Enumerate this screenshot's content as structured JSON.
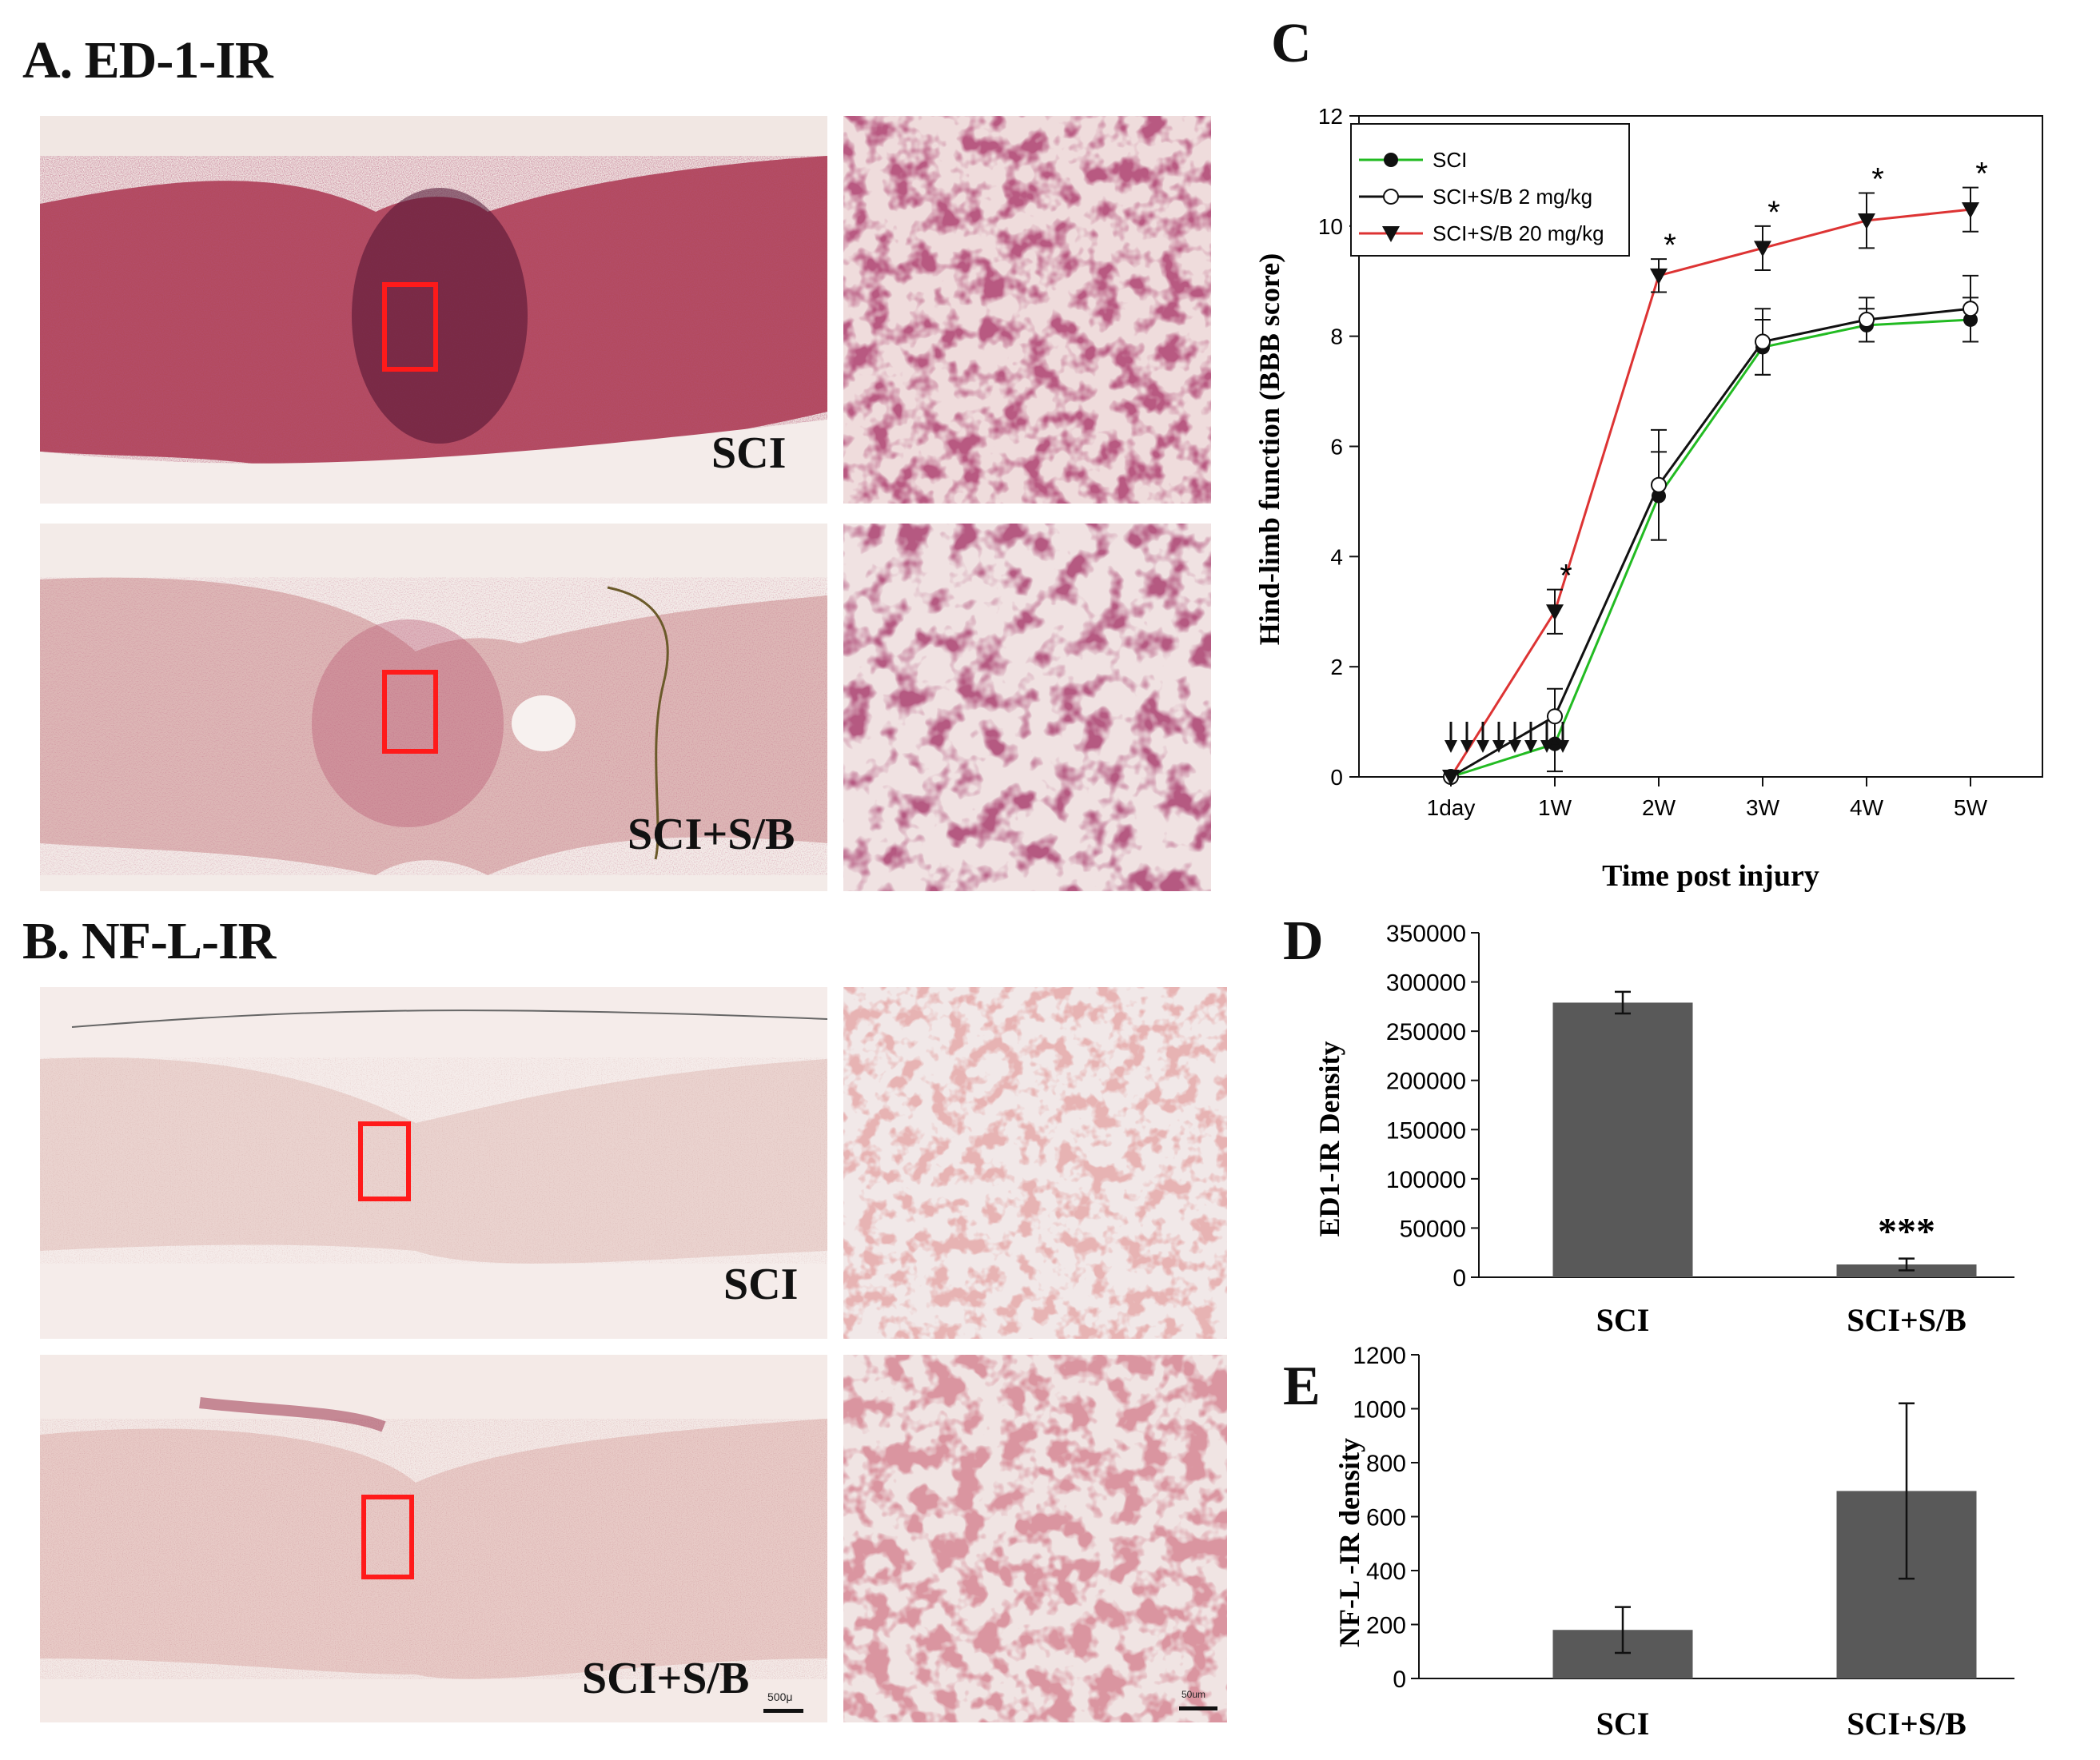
{
  "panels": {
    "a_title": "A. ED-1-IR",
    "b_title": "B. NF-L-IR",
    "c_letter": "C",
    "d_letter": "D",
    "e_letter": "E"
  },
  "micrographs": {
    "a_top_label": "SCI",
    "a_bottom_label": "SCI+S/B",
    "b_top_label": "SCI",
    "b_bottom_label": "SCI+S/B",
    "scale_main": "500μ",
    "scale_zoom": "50um"
  },
  "colors": {
    "stain_dark": "#7a1e3a",
    "stain_light": "#e9c9c6",
    "bar_fill": "#595959",
    "line_sci": "#22bb22",
    "line_low": "#111111",
    "line_high": "#dd3333"
  },
  "chart_data": [
    {
      "id": "C",
      "type": "line",
      "xlabel": "Time post injury",
      "ylabel": "Hind-limb function (BBB score)",
      "ylim": [
        0,
        12
      ],
      "yticks": [
        0,
        2,
        4,
        6,
        8,
        10,
        12
      ],
      "categories": [
        "1day",
        "1W",
        "2W",
        "3W",
        "4W",
        "5W"
      ],
      "series": [
        {
          "name": "SCI",
          "marker": "filled-circle",
          "color": "#22bb22",
          "values": [
            0,
            0.6,
            5.1,
            7.8,
            8.2,
            8.3
          ],
          "errors": [
            0,
            0.5,
            0.8,
            0.5,
            0.3,
            0.4
          ]
        },
        {
          "name": "SCI+S/B  2 mg/kg",
          "marker": "open-circle",
          "color": "#111111",
          "values": [
            0,
            1.1,
            5.3,
            7.9,
            8.3,
            8.5
          ],
          "errors": [
            0,
            0.5,
            1.0,
            0.6,
            0.4,
            0.6
          ]
        },
        {
          "name": "SCI+S/B 20 mg/kg",
          "marker": "filled-triangle-down",
          "color": "#dd3333",
          "values": [
            0,
            3.0,
            9.1,
            9.6,
            10.1,
            10.3
          ],
          "errors": [
            0,
            0.4,
            0.3,
            0.4,
            0.5,
            0.4
          ]
        }
      ],
      "significance": [
        "",
        "*",
        "*",
        "*",
        "*",
        "*"
      ],
      "dosing_arrows": 8,
      "legend": "top-left"
    },
    {
      "id": "D",
      "type": "bar",
      "ylabel": "ED1-IR Density",
      "ylim": [
        0,
        350000
      ],
      "yticks": [
        0,
        50000,
        100000,
        150000,
        200000,
        250000,
        300000,
        350000
      ],
      "categories": [
        "SCI",
        "SCI+S/B"
      ],
      "values": [
        279000,
        13000
      ],
      "errors": [
        11000,
        6000
      ],
      "significance": [
        "",
        "***"
      ]
    },
    {
      "id": "E",
      "type": "bar",
      "ylabel": "NF-L -IR density",
      "ylim": [
        0,
        1200
      ],
      "yticks": [
        0,
        200,
        400,
        600,
        800,
        1000,
        1200
      ],
      "categories": [
        "SCI",
        "SCI+S/B"
      ],
      "values": [
        180,
        695
      ],
      "errors": [
        85,
        325
      ]
    }
  ]
}
